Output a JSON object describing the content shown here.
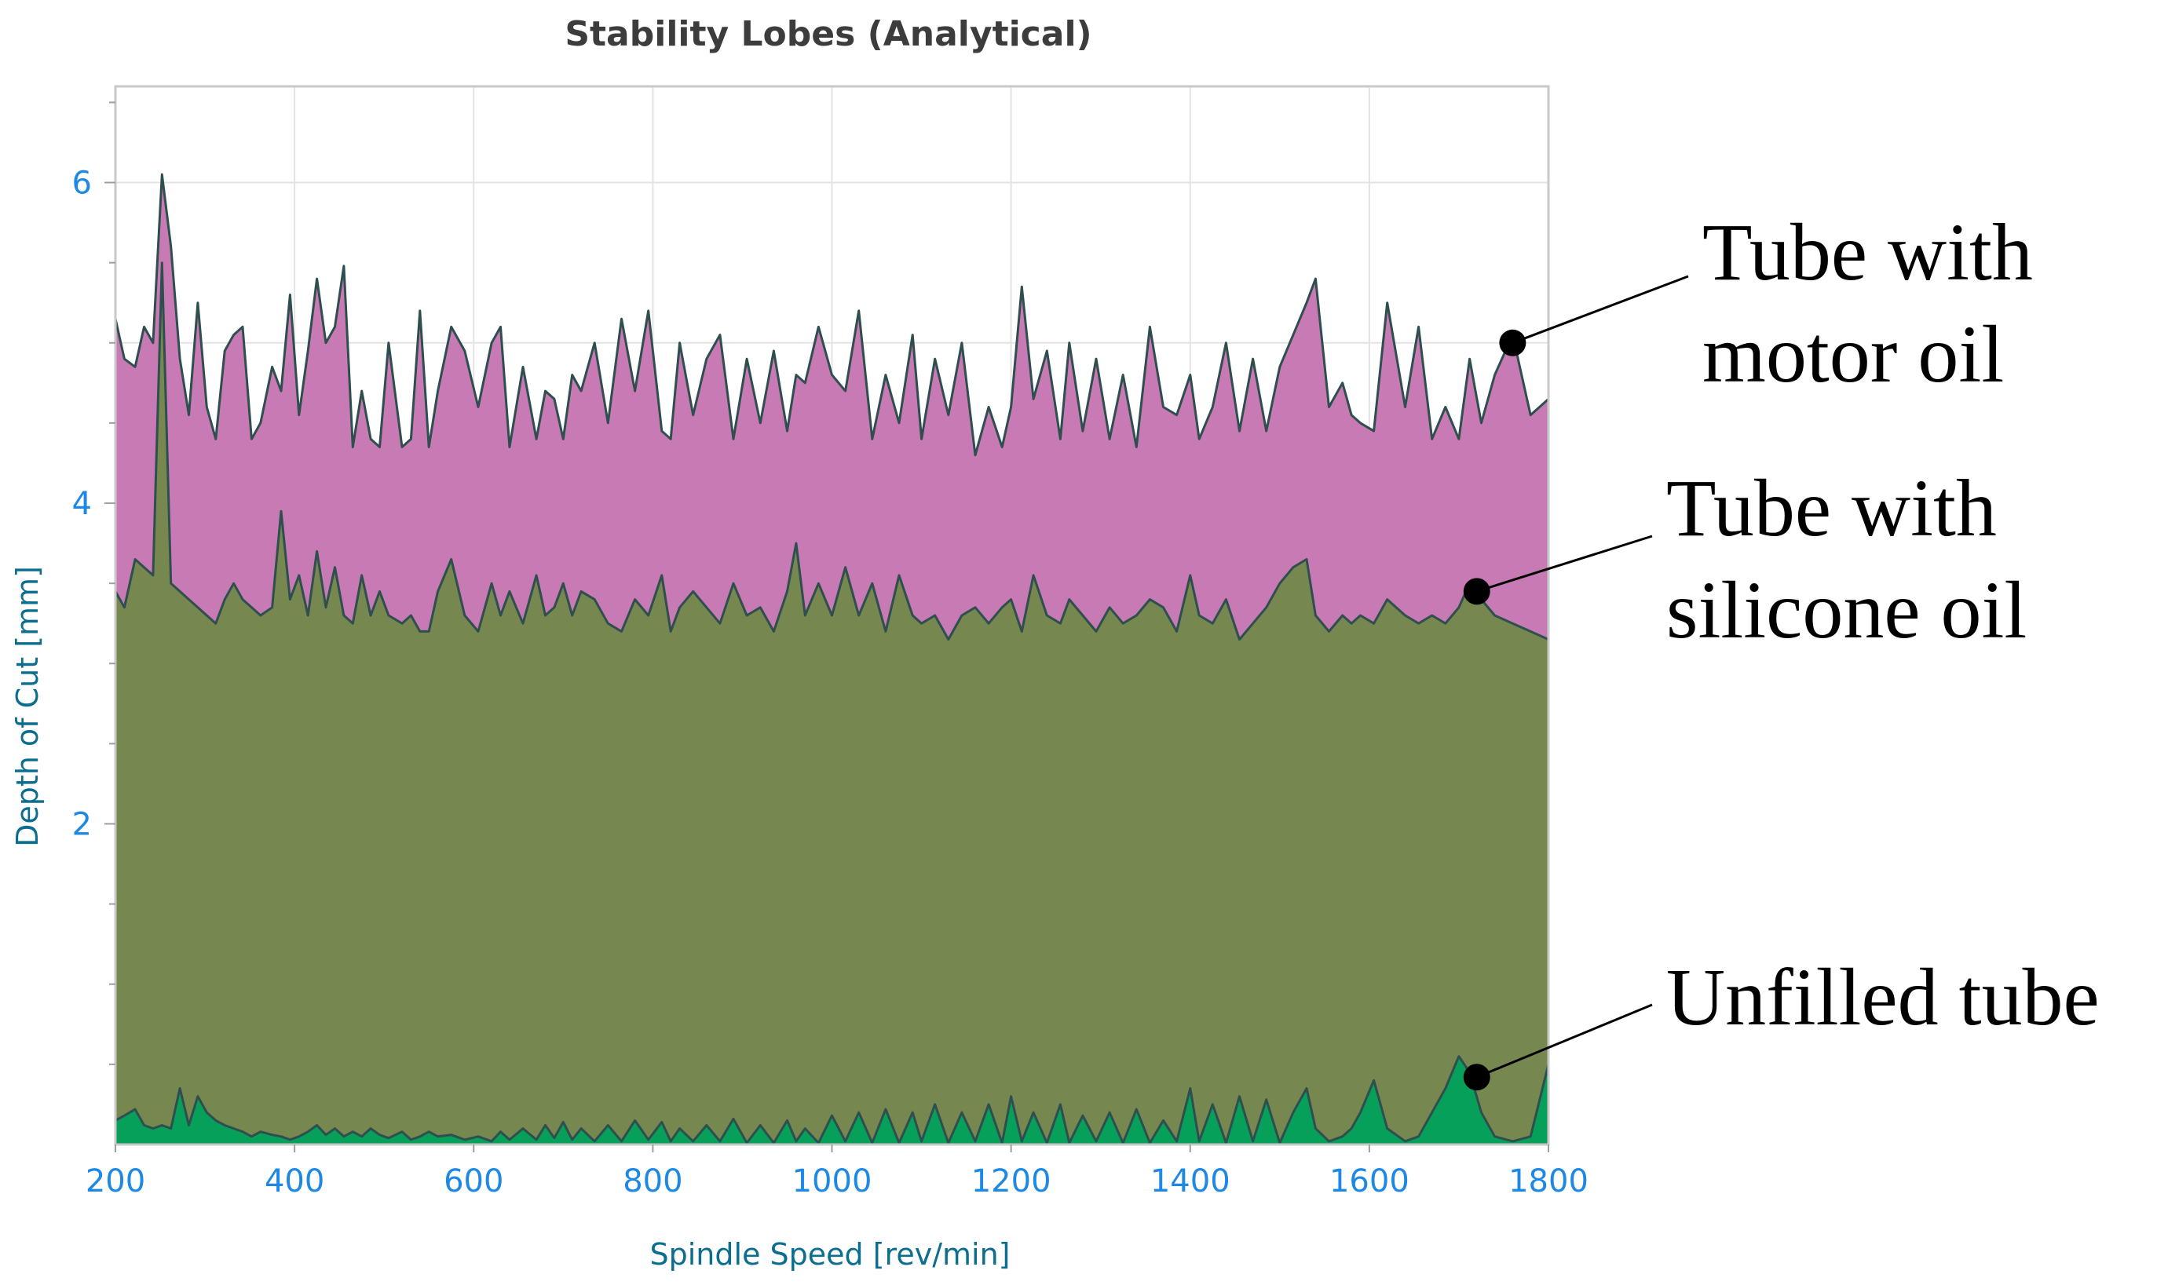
{
  "chart_data": {
    "type": "area",
    "title": "Stability Lobes (Analytical)",
    "xlabel": "Spindle Speed [rev/min]",
    "ylabel": "Depth of Cut [mm]",
    "xlim": [
      200,
      1800
    ],
    "ylim": [
      0,
      6.6
    ],
    "xticks": [
      200,
      400,
      600,
      800,
      1000,
      1200,
      1400,
      1600,
      1800
    ],
    "yticks": [
      2,
      4,
      6
    ],
    "grid": true,
    "series": [
      {
        "name": "Tube with motor oil",
        "color": "#c87ab4",
        "x": [
          200,
          210,
          222,
          232,
          242,
          252,
          262,
          272,
          282,
          292,
          302,
          312,
          322,
          332,
          342,
          352,
          362,
          375,
          385,
          395,
          405,
          415,
          425,
          435,
          445,
          455,
          465,
          475,
          485,
          495,
          505,
          520,
          530,
          540,
          550,
          560,
          575,
          590,
          605,
          620,
          630,
          640,
          655,
          670,
          680,
          690,
          700,
          710,
          720,
          735,
          750,
          765,
          780,
          795,
          810,
          820,
          830,
          845,
          860,
          875,
          890,
          905,
          920,
          935,
          950,
          960,
          970,
          985,
          1000,
          1015,
          1030,
          1045,
          1060,
          1075,
          1090,
          1100,
          1115,
          1130,
          1145,
          1160,
          1175,
          1190,
          1200,
          1212,
          1225,
          1240,
          1255,
          1265,
          1280,
          1295,
          1310,
          1325,
          1340,
          1355,
          1370,
          1385,
          1400,
          1410,
          1425,
          1440,
          1455,
          1470,
          1485,
          1500,
          1515,
          1530,
          1540,
          1555,
          1570,
          1580,
          1590,
          1605,
          1620,
          1640,
          1655,
          1670,
          1685,
          1700,
          1712,
          1725,
          1740,
          1760,
          1780,
          1800
        ],
        "values": [
          5.15,
          4.9,
          4.85,
          5.1,
          5.0,
          6.05,
          5.6,
          4.9,
          4.55,
          5.25,
          4.6,
          4.4,
          4.95,
          5.05,
          5.1,
          4.4,
          4.5,
          4.85,
          4.7,
          5.3,
          4.55,
          4.95,
          5.4,
          5.0,
          5.1,
          5.48,
          4.35,
          4.7,
          4.4,
          4.35,
          5.0,
          4.35,
          4.4,
          5.2,
          4.35,
          4.7,
          5.1,
          4.95,
          4.6,
          5.0,
          5.1,
          4.35,
          4.85,
          4.4,
          4.7,
          4.65,
          4.4,
          4.8,
          4.7,
          5.0,
          4.5,
          5.15,
          4.7,
          5.2,
          4.45,
          4.4,
          5.0,
          4.55,
          4.9,
          5.05,
          4.4,
          4.9,
          4.5,
          4.95,
          4.45,
          4.8,
          4.75,
          5.1,
          4.8,
          4.7,
          5.2,
          4.4,
          4.8,
          4.5,
          5.05,
          4.4,
          4.9,
          4.55,
          5.0,
          4.3,
          4.6,
          4.35,
          4.6,
          5.35,
          4.65,
          4.95,
          4.4,
          5.0,
          4.45,
          4.9,
          4.4,
          4.8,
          4.35,
          5.1,
          4.6,
          4.55,
          4.8,
          4.4,
          4.6,
          5.0,
          4.45,
          4.9,
          4.45,
          4.85,
          5.05,
          5.25,
          5.4,
          4.6,
          4.75,
          4.55,
          4.5,
          4.45,
          5.25,
          4.6,
          5.1,
          4.4,
          4.6,
          4.4,
          4.9,
          4.5,
          4.8,
          5.05,
          4.55,
          4.65
        ]
      },
      {
        "name": "Tube with silicone oil",
        "color": "#76874f",
        "x": [
          200,
          210,
          222,
          232,
          242,
          252,
          262,
          272,
          282,
          292,
          302,
          312,
          322,
          332,
          342,
          352,
          362,
          375,
          385,
          395,
          405,
          415,
          425,
          435,
          445,
          455,
          465,
          475,
          485,
          495,
          505,
          520,
          530,
          540,
          550,
          560,
          575,
          590,
          605,
          620,
          630,
          640,
          655,
          670,
          680,
          690,
          700,
          710,
          720,
          735,
          750,
          765,
          780,
          795,
          810,
          820,
          830,
          845,
          860,
          875,
          890,
          905,
          920,
          935,
          950,
          960,
          970,
          985,
          1000,
          1015,
          1030,
          1045,
          1060,
          1075,
          1090,
          1100,
          1115,
          1130,
          1145,
          1160,
          1175,
          1190,
          1200,
          1212,
          1225,
          1240,
          1255,
          1265,
          1280,
          1295,
          1310,
          1325,
          1340,
          1355,
          1370,
          1385,
          1400,
          1410,
          1425,
          1440,
          1455,
          1470,
          1485,
          1500,
          1515,
          1530,
          1540,
          1555,
          1570,
          1580,
          1590,
          1605,
          1620,
          1640,
          1655,
          1670,
          1685,
          1700,
          1712,
          1725,
          1740,
          1760,
          1780,
          1800
        ],
        "values": [
          3.45,
          3.35,
          3.65,
          3.6,
          3.55,
          5.5,
          3.5,
          3.45,
          3.4,
          3.35,
          3.3,
          3.25,
          3.4,
          3.5,
          3.4,
          3.35,
          3.3,
          3.35,
          3.95,
          3.4,
          3.55,
          3.3,
          3.7,
          3.35,
          3.6,
          3.3,
          3.25,
          3.55,
          3.3,
          3.45,
          3.3,
          3.25,
          3.3,
          3.2,
          3.2,
          3.45,
          3.65,
          3.3,
          3.2,
          3.5,
          3.3,
          3.45,
          3.25,
          3.55,
          3.3,
          3.35,
          3.5,
          3.3,
          3.45,
          3.4,
          3.25,
          3.2,
          3.4,
          3.3,
          3.55,
          3.2,
          3.35,
          3.45,
          3.35,
          3.25,
          3.5,
          3.3,
          3.35,
          3.2,
          3.45,
          3.75,
          3.3,
          3.5,
          3.3,
          3.6,
          3.3,
          3.5,
          3.2,
          3.55,
          3.3,
          3.25,
          3.3,
          3.15,
          3.3,
          3.35,
          3.25,
          3.35,
          3.4,
          3.2,
          3.55,
          3.3,
          3.25,
          3.4,
          3.3,
          3.2,
          3.35,
          3.25,
          3.3,
          3.4,
          3.35,
          3.2,
          3.55,
          3.3,
          3.25,
          3.4,
          3.15,
          3.25,
          3.35,
          3.5,
          3.6,
          3.65,
          3.3,
          3.2,
          3.3,
          3.25,
          3.3,
          3.25,
          3.4,
          3.3,
          3.25,
          3.3,
          3.25,
          3.35,
          3.5,
          3.4,
          3.3,
          3.25,
          3.2,
          3.15
        ]
      },
      {
        "name": "Unfilled tube",
        "color": "#06a05a",
        "x": [
          200,
          210,
          222,
          232,
          242,
          252,
          262,
          272,
          282,
          292,
          302,
          312,
          322,
          332,
          342,
          352,
          362,
          375,
          385,
          395,
          405,
          415,
          425,
          435,
          445,
          455,
          465,
          475,
          485,
          495,
          505,
          520,
          530,
          540,
          550,
          560,
          575,
          590,
          605,
          620,
          630,
          640,
          655,
          670,
          680,
          690,
          700,
          710,
          720,
          735,
          750,
          765,
          780,
          795,
          810,
          820,
          830,
          845,
          860,
          875,
          890,
          905,
          920,
          935,
          950,
          960,
          970,
          985,
          1000,
          1015,
          1030,
          1045,
          1060,
          1075,
          1090,
          1100,
          1115,
          1130,
          1145,
          1160,
          1175,
          1190,
          1200,
          1212,
          1225,
          1240,
          1255,
          1265,
          1280,
          1295,
          1310,
          1325,
          1340,
          1355,
          1370,
          1385,
          1400,
          1410,
          1425,
          1440,
          1455,
          1470,
          1485,
          1500,
          1515,
          1530,
          1540,
          1555,
          1570,
          1580,
          1590,
          1605,
          1620,
          1640,
          1655,
          1670,
          1685,
          1700,
          1712,
          1725,
          1740,
          1760,
          1780,
          1800
        ],
        "values": [
          0.15,
          0.18,
          0.22,
          0.12,
          0.1,
          0.12,
          0.1,
          0.35,
          0.12,
          0.3,
          0.2,
          0.15,
          0.12,
          0.1,
          0.08,
          0.05,
          0.08,
          0.06,
          0.05,
          0.03,
          0.05,
          0.08,
          0.12,
          0.06,
          0.1,
          0.05,
          0.08,
          0.05,
          0.1,
          0.06,
          0.04,
          0.08,
          0.03,
          0.05,
          0.08,
          0.05,
          0.06,
          0.03,
          0.05,
          0.02,
          0.08,
          0.03,
          0.1,
          0.03,
          0.12,
          0.04,
          0.14,
          0.03,
          0.1,
          0.02,
          0.12,
          0.02,
          0.15,
          0.03,
          0.14,
          0.02,
          0.1,
          0.02,
          0.12,
          0.02,
          0.16,
          0.01,
          0.12,
          0.01,
          0.15,
          0.02,
          0.1,
          0.01,
          0.18,
          0.02,
          0.2,
          0.01,
          0.22,
          0.01,
          0.2,
          0.02,
          0.25,
          0.01,
          0.2,
          0.02,
          0.25,
          0.01,
          0.3,
          0.02,
          0.2,
          0.01,
          0.25,
          0.01,
          0.18,
          0.02,
          0.2,
          0.01,
          0.22,
          0.01,
          0.15,
          0.02,
          0.35,
          0.02,
          0.25,
          0.01,
          0.3,
          0.02,
          0.28,
          0.01,
          0.2,
          0.35,
          0.1,
          0.02,
          0.05,
          0.1,
          0.2,
          0.4,
          0.1,
          0.02,
          0.05,
          0.2,
          0.35,
          0.55,
          0.45,
          0.2,
          0.05,
          0.02,
          0.05,
          0.5
        ]
      }
    ],
    "annotations": [
      {
        "lines": [
          "Tube with",
          "motor oil"
        ],
        "marker_x": 1760,
        "marker_y": 5.0
      },
      {
        "lines": [
          "Tube with",
          "silicone oil"
        ],
        "marker_x": 1720,
        "marker_y": 3.45
      },
      {
        "lines": [
          "Unfilled tube"
        ],
        "marker_x": 1720,
        "marker_y": 0.42
      }
    ]
  }
}
